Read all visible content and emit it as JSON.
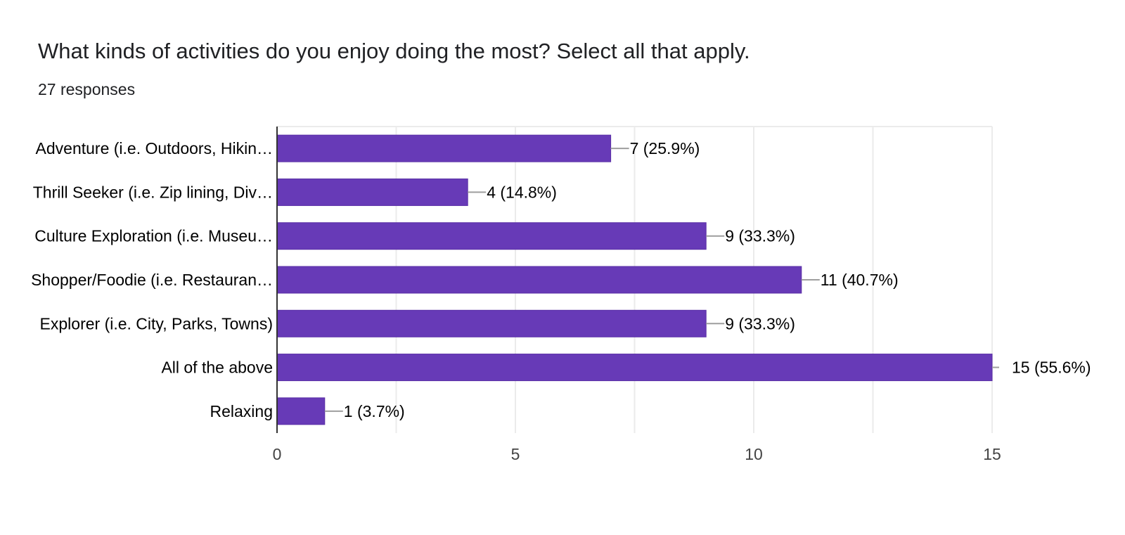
{
  "header": {
    "title": "What kinds of activities do you enjoy doing the most? Select all that apply.",
    "subtitle": "27 responses"
  },
  "chart_data": {
    "type": "bar",
    "orientation": "horizontal",
    "title": "What kinds of activities do you enjoy doing the most? Select all that apply.",
    "subtitle": "27 responses",
    "categories": [
      "Adventure (i.e. Outdoors, Hikin…",
      "Thrill Seeker (i.e. Zip lining, Div…",
      "Culture Exploration (i.e. Museu…",
      "Shopper/Foodie (i.e. Restauran…",
      "Explorer (i.e. City, Parks, Towns)",
      "All of the above",
      "Relaxing"
    ],
    "values": [
      7,
      4,
      9,
      11,
      9,
      15,
      1
    ],
    "data_labels": [
      "7 (25.9%)",
      "4 (14.8%)",
      "9 (33.3%)",
      "11 (40.7%)",
      "9 (33.3%)",
      "15 (55.6%)",
      "1 (3.7%)"
    ],
    "x_ticks": [
      0,
      5,
      10,
      15
    ],
    "xlim": [
      0,
      15
    ],
    "grid": true,
    "legend": "none",
    "bar_color": "#673ab7",
    "bar_stroke": "#5a2fa6",
    "grid_color": "#ebebeb",
    "axis_color": "#333333"
  }
}
